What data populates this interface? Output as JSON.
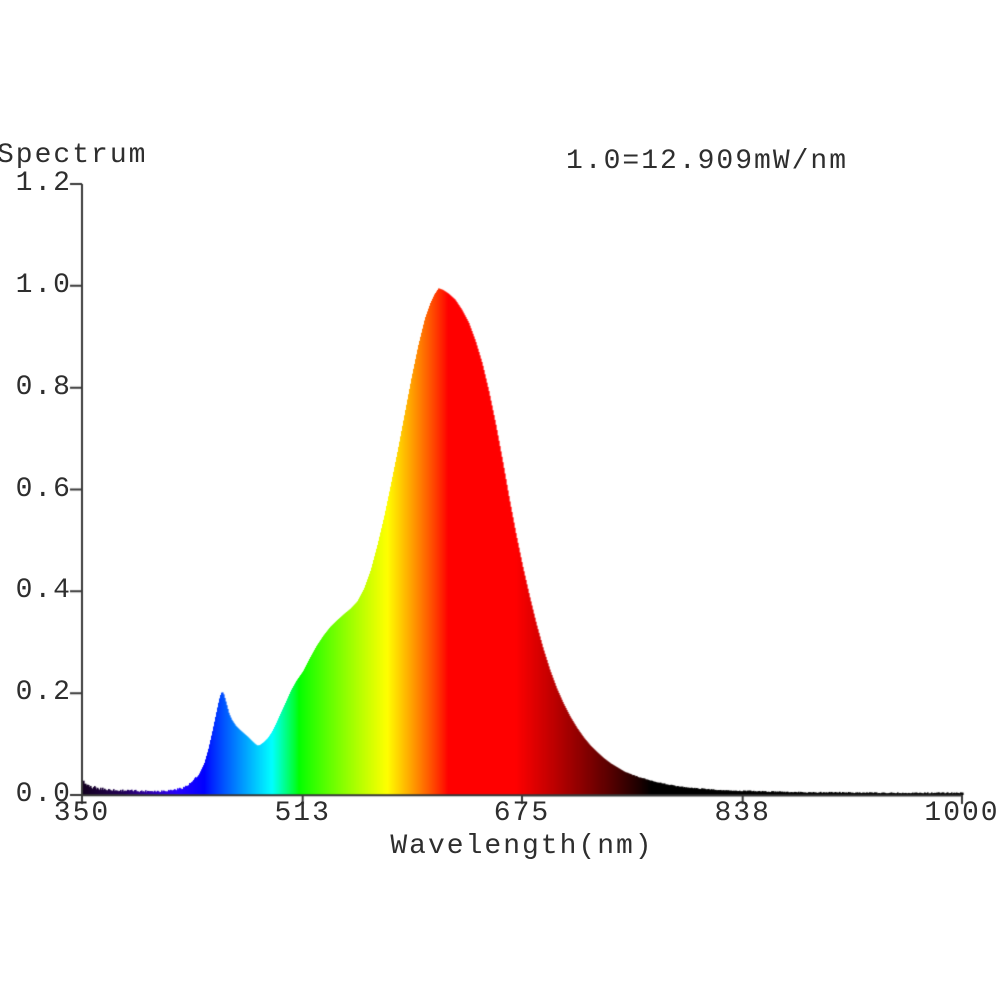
{
  "colors": {
    "background": "#ffffff",
    "text": "#2e2e2e",
    "axis": "#383838"
  },
  "chart_data": {
    "type": "area",
    "title": "Spectrum",
    "scale_note": "1.0=12.909mW/nm",
    "xlabel": "Wavelength(nm)",
    "ylabel": "",
    "xlim": [
      350,
      1000
    ],
    "ylim": [
      0,
      1.2
    ],
    "x_ticks": [
      350,
      513,
      675,
      838,
      1000
    ],
    "x_tick_labels": [
      "350",
      "513",
      "675",
      "838",
      "1000"
    ],
    "y_ticks": [
      0.0,
      0.2,
      0.4,
      0.6,
      0.8,
      1.0,
      1.2
    ],
    "y_tick_labels": [
      "0.0",
      "0.2",
      "0.4",
      "0.6",
      "0.8",
      "1.0",
      "1.2"
    ],
    "grid": false,
    "legend": false,
    "color_encoding": "fill colored by visible-light wavelength, fading to black outside ~420-770nm",
    "peaks": {
      "blue_peak": {
        "wavelength_nm": 453,
        "value": 0.2
      },
      "dip": {
        "wavelength_nm": 479,
        "value": 0.1
      },
      "main_peak": {
        "wavelength_nm": 613,
        "value": 1.0
      }
    },
    "baseline_noise": {
      "uv_region_350_430": 0.006,
      "ir_region_750_1000": 0.003
    },
    "points": [
      [
        350,
        0.028
      ],
      [
        351,
        0.02
      ],
      [
        352,
        0.024
      ],
      [
        353,
        0.014
      ],
      [
        355,
        0.016
      ],
      [
        357,
        0.01
      ],
      [
        359,
        0.012
      ],
      [
        362,
        0.008
      ],
      [
        365,
        0.01
      ],
      [
        368,
        0.007
      ],
      [
        372,
        0.008
      ],
      [
        376,
        0.006
      ],
      [
        380,
        0.007
      ],
      [
        385,
        0.006
      ],
      [
        390,
        0.006
      ],
      [
        395,
        0.005
      ],
      [
        400,
        0.006
      ],
      [
        405,
        0.005
      ],
      [
        410,
        0.006
      ],
      [
        415,
        0.007
      ],
      [
        420,
        0.009
      ],
      [
        424,
        0.012
      ],
      [
        428,
        0.017
      ],
      [
        432,
        0.026
      ],
      [
        436,
        0.04
      ],
      [
        440,
        0.062
      ],
      [
        443,
        0.09
      ],
      [
        446,
        0.125
      ],
      [
        449,
        0.163
      ],
      [
        451,
        0.188
      ],
      [
        452,
        0.197
      ],
      [
        453,
        0.203
      ],
      [
        454,
        0.199
      ],
      [
        456,
        0.18
      ],
      [
        458,
        0.16
      ],
      [
        460,
        0.148
      ],
      [
        463,
        0.136
      ],
      [
        466,
        0.128
      ],
      [
        469,
        0.121
      ],
      [
        472,
        0.114
      ],
      [
        475,
        0.106
      ],
      [
        477,
        0.101
      ],
      [
        479,
        0.097
      ],
      [
        481,
        0.098
      ],
      [
        484,
        0.104
      ],
      [
        487,
        0.112
      ],
      [
        490,
        0.124
      ],
      [
        493,
        0.14
      ],
      [
        496,
        0.158
      ],
      [
        500,
        0.181
      ],
      [
        504,
        0.205
      ],
      [
        508,
        0.224
      ],
      [
        513,
        0.243
      ],
      [
        518,
        0.269
      ],
      [
        523,
        0.293
      ],
      [
        528,
        0.313
      ],
      [
        533,
        0.33
      ],
      [
        538,
        0.343
      ],
      [
        543,
        0.355
      ],
      [
        548,
        0.366
      ],
      [
        553,
        0.38
      ],
      [
        558,
        0.405
      ],
      [
        563,
        0.442
      ],
      [
        568,
        0.492
      ],
      [
        573,
        0.548
      ],
      [
        578,
        0.612
      ],
      [
        583,
        0.678
      ],
      [
        588,
        0.748
      ],
      [
        593,
        0.818
      ],
      [
        598,
        0.882
      ],
      [
        603,
        0.936
      ],
      [
        607,
        0.966
      ],
      [
        610,
        0.983
      ],
      [
        613,
        0.995
      ],
      [
        616,
        0.992
      ],
      [
        620,
        0.985
      ],
      [
        625,
        0.973
      ],
      [
        630,
        0.953
      ],
      [
        635,
        0.928
      ],
      [
        640,
        0.892
      ],
      [
        645,
        0.848
      ],
      [
        650,
        0.792
      ],
      [
        655,
        0.728
      ],
      [
        660,
        0.657
      ],
      [
        665,
        0.582
      ],
      [
        670,
        0.512
      ],
      [
        675,
        0.448
      ],
      [
        680,
        0.39
      ],
      [
        685,
        0.336
      ],
      [
        690,
        0.288
      ],
      [
        695,
        0.246
      ],
      [
        700,
        0.21
      ],
      [
        705,
        0.18
      ],
      [
        710,
        0.154
      ],
      [
        715,
        0.132
      ],
      [
        720,
        0.113
      ],
      [
        725,
        0.097
      ],
      [
        730,
        0.084
      ],
      [
        735,
        0.072
      ],
      [
        740,
        0.062
      ],
      [
        745,
        0.054
      ],
      [
        750,
        0.046
      ],
      [
        755,
        0.04
      ],
      [
        760,
        0.035
      ],
      [
        765,
        0.031
      ],
      [
        770,
        0.027
      ],
      [
        775,
        0.024
      ],
      [
        780,
        0.021
      ],
      [
        788,
        0.017
      ],
      [
        796,
        0.014
      ],
      [
        805,
        0.012
      ],
      [
        815,
        0.01
      ],
      [
        825,
        0.008
      ],
      [
        838,
        0.007
      ],
      [
        850,
        0.006
      ],
      [
        865,
        0.005
      ],
      [
        885,
        0.004
      ],
      [
        910,
        0.004
      ],
      [
        940,
        0.003
      ],
      [
        970,
        0.003
      ],
      [
        1000,
        0.003
      ]
    ]
  }
}
